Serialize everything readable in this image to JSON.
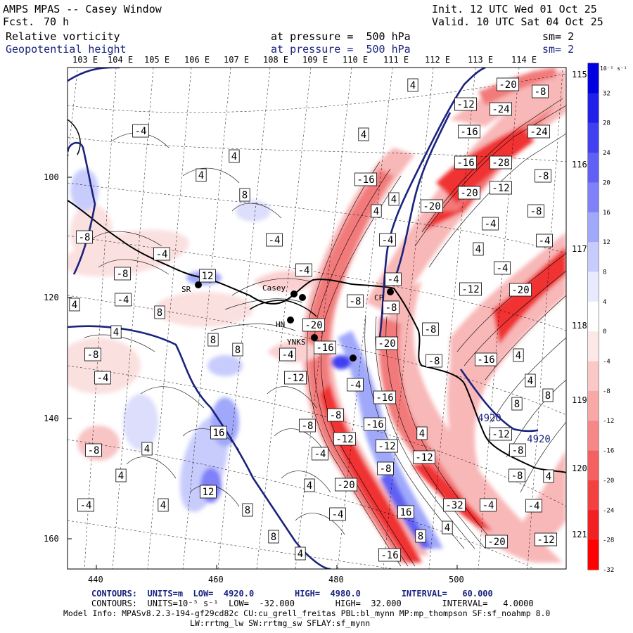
{
  "header": {
    "title": "AMPS MPAS -- Casey Window",
    "fcst_label": "Fcst.",
    "fcst_value": "70 h",
    "init": "Init. 12 UTC Wed 01 Oct 25",
    "valid": "Valid. 10 UTC Sat 04 Oct 25",
    "field1": "Relative vorticity",
    "field1_pressure": "at pressure =  500 hPa",
    "field1_sm": "sm= 2",
    "field2": "Geopotential height",
    "field2_pressure": "at pressure =  500 hPa",
    "field2_sm": "sm= 2"
  },
  "top_longitudes": [
    "103 E",
    "104 E",
    "105 E",
    "106 E",
    "107 E",
    "108 E",
    "109 E",
    "110 E",
    "111 E",
    "112 E",
    "113 E",
    "114 E"
  ],
  "right_longitudes": [
    "115 E",
    "116 E",
    "117 E",
    "118 E",
    "119 E",
    "120 E",
    "121 E"
  ],
  "y_ticks": [
    "100",
    "120",
    "140",
    "160"
  ],
  "x_ticks": [
    "440",
    "460",
    "480",
    "500"
  ],
  "stations": [
    "SR",
    "Casey",
    "HN",
    "YNKS",
    "CP"
  ],
  "contour_labels": [
    "-4",
    "-8",
    "-12",
    "-16",
    "-20",
    "-24",
    "-28",
    "-32",
    "4",
    "8",
    "12",
    "16",
    "4920"
  ],
  "colorbar": {
    "units": "10⁻⁵ s⁻¹",
    "labels": [
      "32",
      "28",
      "24",
      "20",
      "16",
      "12",
      "8",
      "4",
      "0",
      "-4",
      "-8",
      "-12",
      "-16",
      "-20",
      "-24",
      "-28",
      "-32"
    ],
    "colors": [
      "#0000e0",
      "#2020e8",
      "#4040f0",
      "#6060f4",
      "#8080f8",
      "#a0a8fa",
      "#c8ccfc",
      "#e8eafe",
      "#ffffff",
      "#fde8e8",
      "#fbc8c8",
      "#f9a8a8",
      "#f78888",
      "#f56060",
      "#f34040",
      "#f22020",
      "#ff0000"
    ]
  },
  "footer": {
    "contours1": "CONTOURS:  UNITS=m  LOW=  4920.0        HIGH=  4980.0        INTERVAL=   60.000",
    "contours2": "CONTOURS:  UNITS=10⁻⁵ s⁻¹  LOW=  -32.000        HIGH=  32.000        INTERVAL=   4.0000",
    "model_info": "Model Info: MPASv8.2.3-194-gf29cd82c CU:cu_grell_freitas PBL:bl_mynn MP:mp_thompson SF:sf_noahmp 8.0",
    "model_info2": "LW:rrtmg_lw SW:rrtmg_sw SFLAY:sf_mynn"
  }
}
